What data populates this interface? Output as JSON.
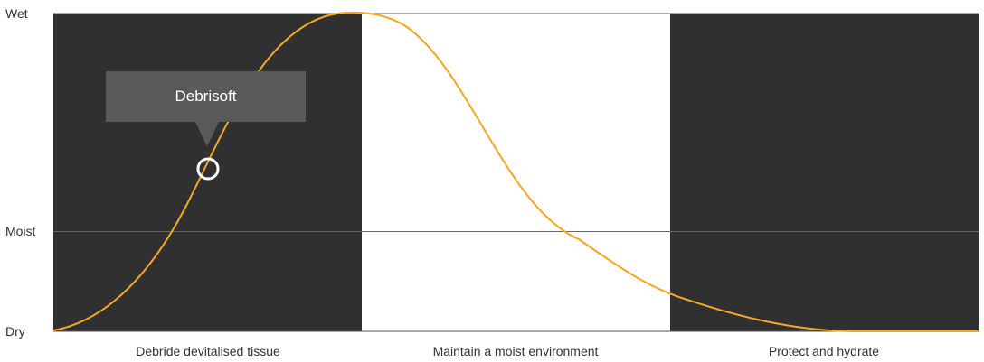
{
  "diagram": {
    "y_levels": [
      "Wet",
      "Moist",
      "Dry"
    ],
    "phases": [
      "Debride devitalised tissue",
      "Maintain a moist environment",
      "Protect and hydrate"
    ],
    "marker_label": "Debrisoft",
    "colors": {
      "dark_panel": "#303030",
      "light_panel": "#ffffff",
      "curve": "#f5a623",
      "tooltip": "#5a5a5a",
      "marker": "#ffffff"
    }
  }
}
